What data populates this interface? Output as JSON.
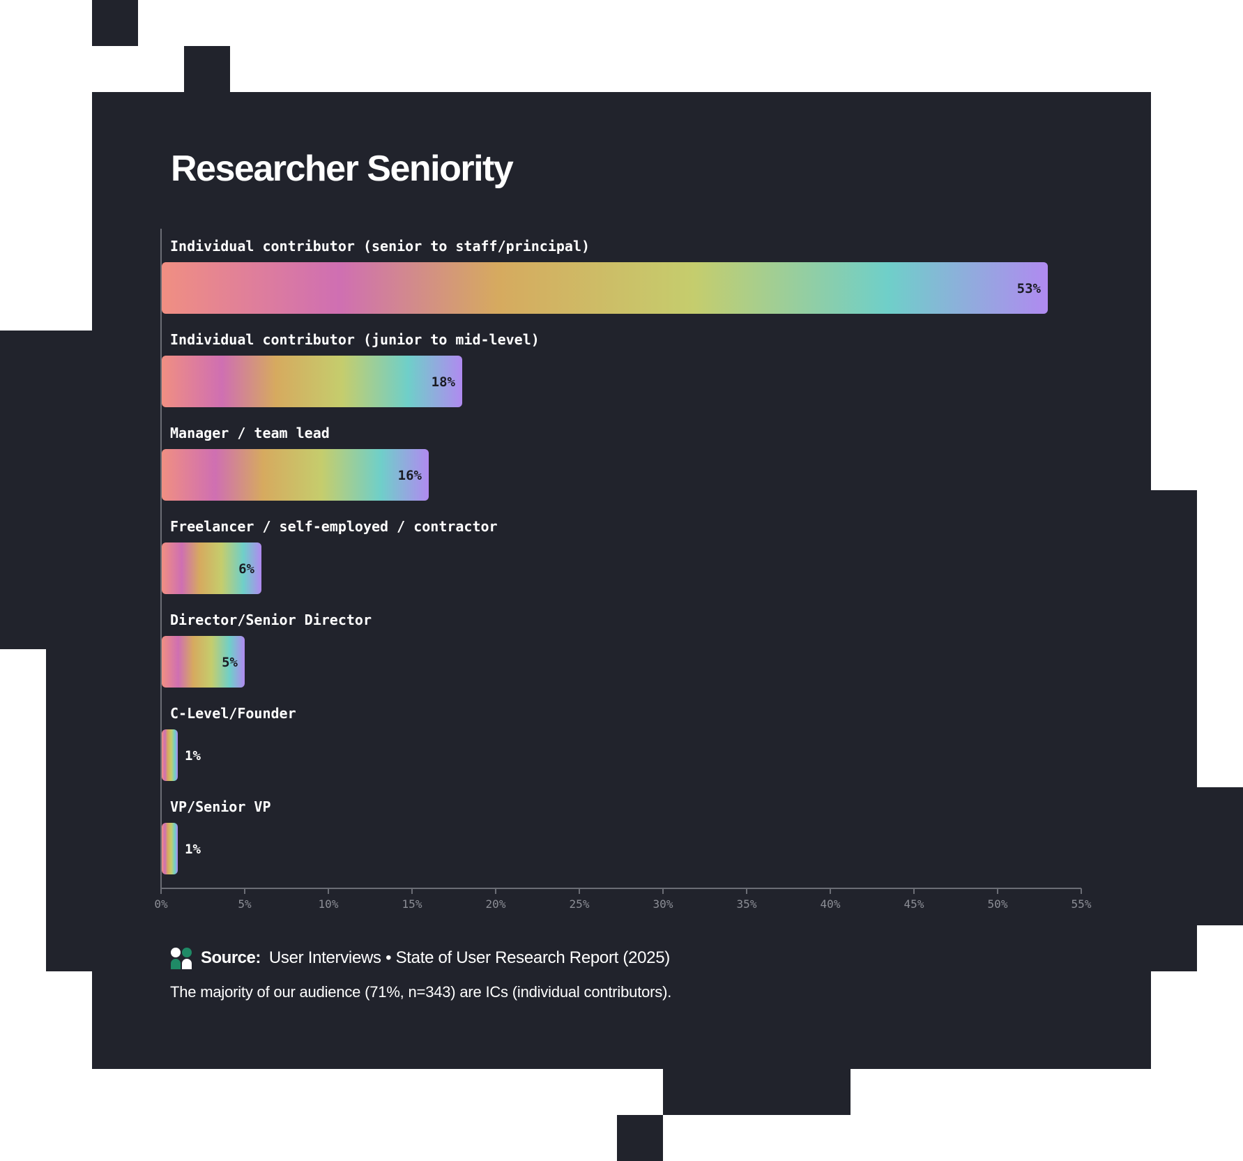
{
  "title": "Researcher Seniority",
  "source": {
    "label": "Source:",
    "text": "User Interviews • State of User Research Report (2025)",
    "logo_icon": "user-interviews-logo-icon"
  },
  "note": "The majority of our audience (71%, n=343) are ICs (individual contributors).",
  "colors": {
    "background": "#21232c",
    "text": "#ffffff",
    "axis": "#6b6d75",
    "tick_text": "#8c8e96",
    "logo_primary": "#1f8a66",
    "gradient_stops": [
      "#f08f82",
      "#cf6fb2",
      "#d6aa5f",
      "#c5cd6d",
      "#6fcfc9",
      "#b08af0"
    ]
  },
  "chart_data": {
    "type": "bar",
    "orientation": "horizontal",
    "title": "Researcher Seniority",
    "categories": [
      "Individual contributor (senior to staff/principal)",
      "Individual contributor (junior to mid-level)",
      "Manager / team lead",
      "Freelancer / self-employed / contractor",
      "Director/Senior Director",
      "C-Level/Founder",
      "VP/Senior VP"
    ],
    "values": [
      53,
      18,
      16,
      6,
      5,
      1,
      1
    ],
    "value_labels": [
      "53%",
      "18%",
      "16%",
      "6%",
      "5%",
      "1%",
      "1%"
    ],
    "xlim": [
      0,
      55
    ],
    "xticks": [
      "0%",
      "5%",
      "10%",
      "15%",
      "20%",
      "25%",
      "30%",
      "35%",
      "40%",
      "45%",
      "50%",
      "55%"
    ],
    "xlabel": "",
    "ylabel": "",
    "grid": false,
    "legend": "none"
  }
}
